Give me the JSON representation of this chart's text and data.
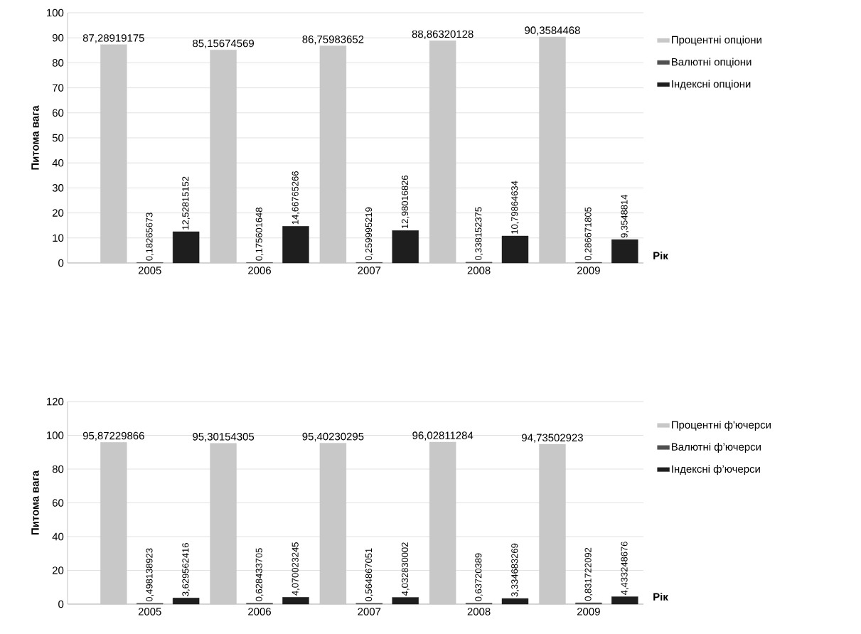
{
  "chart_data": [
    {
      "type": "bar",
      "ylabel": "Питома вага",
      "xlabel": "Рік",
      "categories": [
        "2005",
        "2006",
        "2007",
        "2008",
        "2009"
      ],
      "ylim": [
        0,
        100
      ],
      "yticks": [
        0,
        10,
        20,
        30,
        40,
        50,
        60,
        70,
        80,
        90,
        100
      ],
      "grid": "y",
      "legend": "right",
      "series": [
        {
          "name": "Процентні опціони",
          "color": "#c8c8c8",
          "values": [
            87.28919175,
            85.15674569,
            86.75983652,
            88.86320128,
            90.3584468
          ],
          "value_labels": [
            "87,28919175",
            "85,15674569",
            "86,75983652",
            "88,86320128",
            "90,3584468"
          ]
        },
        {
          "name": "Валютні опціони",
          "color": "#505050",
          "values": [
            0.18265673,
            0.175601648,
            0.259995219,
            0.338152375,
            0.286671805
          ],
          "value_labels": [
            "0,18265673",
            "0,175601648",
            "0,259995219",
            "0,338152375",
            "0,286671805"
          ]
        },
        {
          "name": "Індексні опціони",
          "color": "#1e1e1e",
          "values": [
            12.52815152,
            14.66765266,
            12.98016826,
            10.79864634,
            9.3548814
          ],
          "value_labels": [
            "12,52815152",
            "14,66765266",
            "12,98016826",
            "10,79864634",
            "9,3548814"
          ]
        }
      ]
    },
    {
      "type": "bar",
      "ylabel": "Питома вага",
      "xlabel": "Рік",
      "categories": [
        "2005",
        "2006",
        "2007",
        "2008",
        "2009"
      ],
      "ylim": [
        0,
        120
      ],
      "yticks": [
        0,
        20,
        40,
        60,
        80,
        100,
        120
      ],
      "grid": "y",
      "legend": "right",
      "series": [
        {
          "name": "Процентні ф'ючерси",
          "color": "#c8c8c8",
          "values": [
            95.87229866,
            95.30154305,
            95.40230295,
            96.02811284,
            94.73502923
          ],
          "value_labels": [
            "95,87229866",
            "95,30154305",
            "95,40230295",
            "96,02811284",
            "94,73502923"
          ]
        },
        {
          "name": "Валютні ф’ючерси",
          "color": "#505050",
          "values": [
            0.498138923,
            0.628433705,
            0.564867051,
            0.63720389,
            0.831722092
          ],
          "value_labels": [
            "0,498138923",
            "0,628433705",
            "0,564867051",
            "0,63720389",
            "0,831722092"
          ]
        },
        {
          "name": "Індексні ф’ючерси",
          "color": "#1e1e1e",
          "values": [
            3.629562416,
            4.070023245,
            4.032830002,
            3.334683269,
            4.433248676
          ],
          "value_labels": [
            "3,629562416",
            "4,070023245",
            "4,032830002",
            "3,334683269",
            "4,433248676"
          ]
        }
      ]
    }
  ]
}
